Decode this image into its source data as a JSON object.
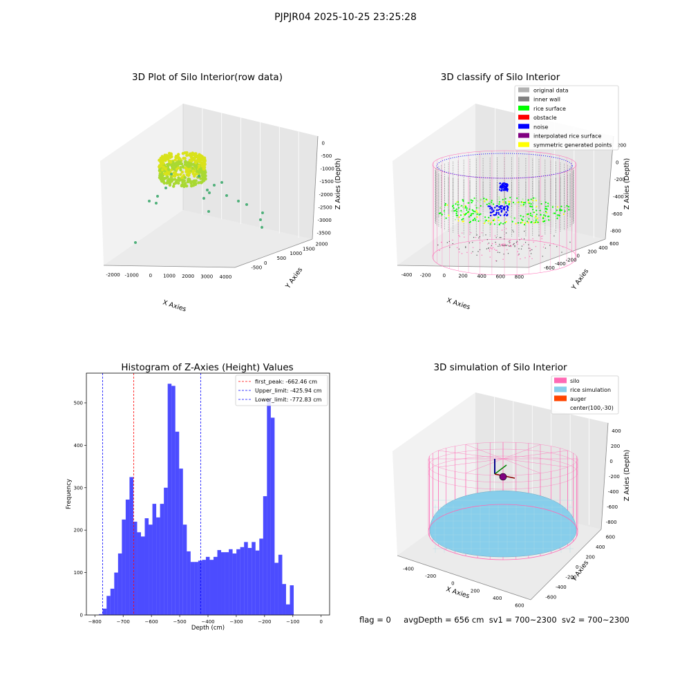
{
  "suptitle": "PJPJR04 2025-10-25 23:25:28",
  "footer": {
    "flag": "flag = 0",
    "avg": "avgDepth = 656 cm",
    "sv1": "sv1 = 700~2300",
    "sv2": "sv2 = 700~2300"
  },
  "colors": {
    "hist": "#0000ff",
    "first_peak": "#ff0000",
    "limits": "#0000ff",
    "original": "#b2b2b2",
    "inner_wall": "#808080",
    "rice_surface": "#00ff00",
    "obstacle": "#ff0000",
    "noise": "#0000ff",
    "interpolated": "#800080",
    "symmetric": "#ffff00",
    "silo": "#ff69b4",
    "rice_sim": "#87ceeb",
    "auger": "#ff4500"
  },
  "chart_data": [
    {
      "type": "scatter",
      "title": "3D Plot of Silo Interior(row data)",
      "xlabel": "X Axies",
      "ylabel": "Y Axies",
      "zlabel": "Z Axies (Depth)",
      "xticks": [
        "-2000",
        "-1000",
        "0",
        "1000",
        "2000",
        "3000",
        "4000"
      ],
      "yticks": [
        "-500",
        "0",
        "500",
        "1000",
        "1500",
        "2000"
      ],
      "zticks": [
        "0",
        "-500",
        "-1000",
        "-1500",
        "-2000",
        "-2500",
        "-3000",
        "-3500"
      ],
      "note_points": [
        [
          2000,
          900,
          -2000
        ],
        [
          2800,
          400,
          -2500
        ],
        [
          1800,
          1200,
          -1900
        ],
        [
          3500,
          0,
          -3300
        ],
        [
          -2000,
          200,
          -3200
        ],
        [
          2000,
          500,
          -2400
        ],
        [
          2900,
          700,
          -2300
        ],
        [
          -700,
          800,
          -2200
        ]
      ]
    },
    {
      "type": "scatter",
      "title": "3D classify of Silo Interior",
      "xlabel": "X Axies",
      "ylabel": "Y Axies",
      "zlabel": "Z Axies (Depth)",
      "xticks": [
        "-400",
        "-200",
        "0",
        "200",
        "400",
        "600",
        "800"
      ],
      "yticks": [
        "-600",
        "-400",
        "-200",
        "0",
        "200",
        "400",
        "600"
      ],
      "zticks": [
        "200",
        "0",
        "-200",
        "-400",
        "-600",
        "-800"
      ],
      "legend": [
        "original data",
        "inner wall",
        "rice surface",
        "obstacle",
        "noise",
        "interpolated rice surface",
        "symmetric generated points"
      ],
      "legend_loc": "upper right"
    },
    {
      "type": "bar",
      "title": "Histogram of Z-Axies (Height) Values",
      "xlabel": "Depth (cm)",
      "ylabel": "Frequency",
      "xlim": [
        -830,
        30
      ],
      "ylim": [
        0,
        570
      ],
      "bin_width": 13.5,
      "bin_start": -785.5,
      "values": [
        2,
        15,
        45,
        62,
        100,
        145,
        225,
        272,
        325,
        220,
        195,
        185,
        228,
        213,
        262,
        230,
        262,
        300,
        545,
        540,
        432,
        345,
        213,
        150,
        125,
        125,
        128,
        130,
        137,
        130,
        137,
        153,
        148,
        148,
        155,
        145,
        155,
        160,
        172,
        158,
        172,
        152,
        180,
        280,
        510,
        465,
        123,
        142,
        73,
        25,
        70
      ],
      "xticks": [
        -800,
        -700,
        -600,
        -500,
        -400,
        -300,
        -200,
        -100,
        0
      ],
      "yticks": [
        0,
        100,
        200,
        300,
        400,
        500
      ],
      "vlines": [
        {
          "label": "first_peak: -662.46 cm",
          "x": -662.46,
          "color": "#ff0000"
        },
        {
          "label": "Upper_limit: -425.94 cm",
          "x": -425.94,
          "color": "#0000ff"
        },
        {
          "label": "Lower_limit: -772.83 cm",
          "x": -772.83,
          "color": "#0000ff"
        }
      ],
      "legend_loc": "upper right"
    },
    {
      "type": "scatter",
      "title": "3D simulation of Silo Interior",
      "xlabel": "X Axies",
      "ylabel": "Y Axies",
      "zlabel": "Z Axies (Depth)",
      "xticks": [
        "-400",
        "-200",
        "0",
        "200",
        "400",
        "600"
      ],
      "yticks": [
        "-600",
        "-400",
        "-200",
        "0",
        "200",
        "400",
        "600"
      ],
      "zticks": [
        "400",
        "200",
        "0",
        "-200",
        "-400",
        "-600",
        "-800"
      ],
      "legend": [
        "silo",
        "rice simulation",
        "auger",
        "center(100,-30)"
      ],
      "legend_loc": "upper right"
    }
  ]
}
